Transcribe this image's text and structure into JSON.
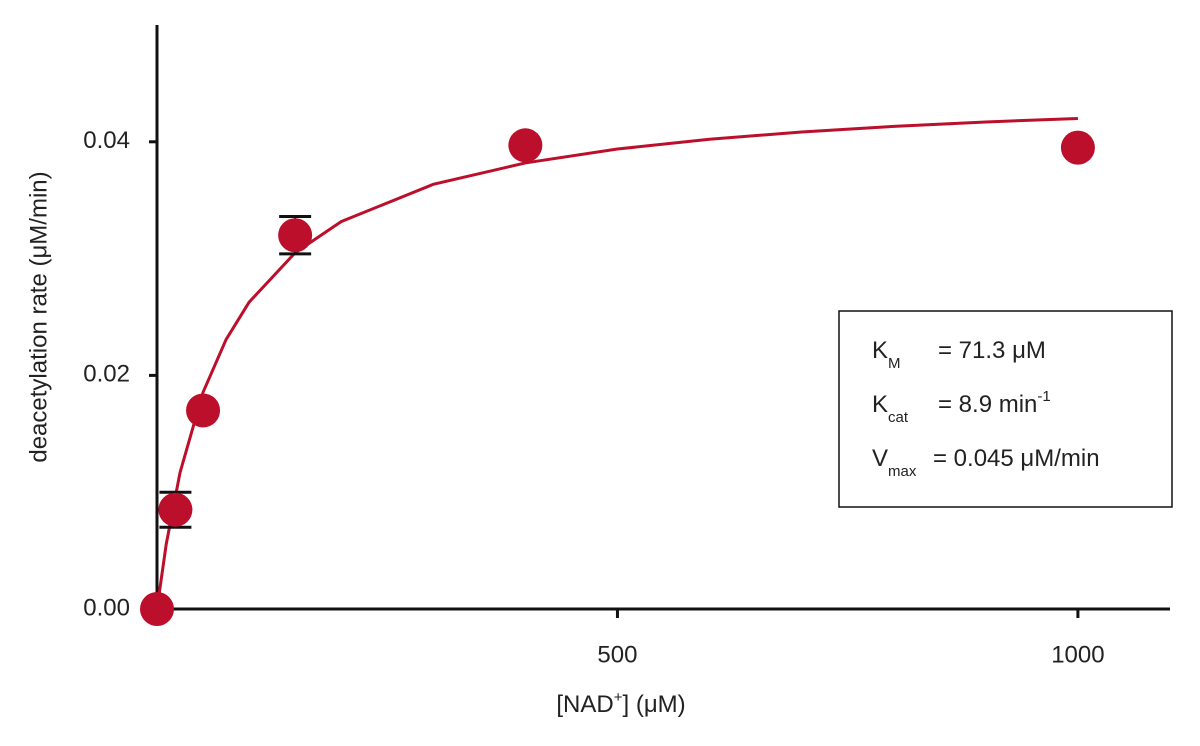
{
  "chart_data": {
    "type": "scatter",
    "ylabel": "deacetylation rate (μM/min)",
    "xlabel": [
      "[NAD",
      "+",
      "] (μM)"
    ],
    "xlim": [
      0,
      1100
    ],
    "xticks": [
      500,
      1000
    ],
    "ylim": [
      0,
      0.05
    ],
    "yticks": [
      {
        "value": 0,
        "label": "0.00"
      },
      0.02,
      0.04
    ],
    "points": {
      "color": "#bb0f2b",
      "x": [
        0,
        20,
        50,
        150,
        400,
        1000
      ],
      "values": [
        0,
        0.0085,
        0.017,
        0.032,
        0.0397,
        0.0395
      ],
      "errors": [
        null,
        0.0015,
        null,
        0.0016,
        null,
        null
      ]
    },
    "fit": {
      "color": "#bb0f2b",
      "x": [
        0,
        10,
        25,
        50,
        75,
        100,
        150,
        200,
        300,
        400,
        500,
        600,
        700,
        800,
        900,
        1000
      ],
      "values": [
        0,
        0.00554,
        0.01168,
        0.01855,
        0.02307,
        0.02627,
        0.0305,
        0.03317,
        0.03636,
        0.03819,
        0.03938,
        0.04022,
        0.04084,
        0.04132,
        0.0417,
        0.042
      ]
    },
    "annotation": [
      {
        "symbol": "K",
        "subscript": "M",
        "text": "= 71.3 μM"
      },
      {
        "symbol": "K",
        "subscript": "cat",
        "text": "= 8.9 min",
        "superscript": "-1"
      },
      {
        "symbol": "V",
        "subscript": "max",
        "text": "= 0.045 μM/min"
      }
    ]
  }
}
